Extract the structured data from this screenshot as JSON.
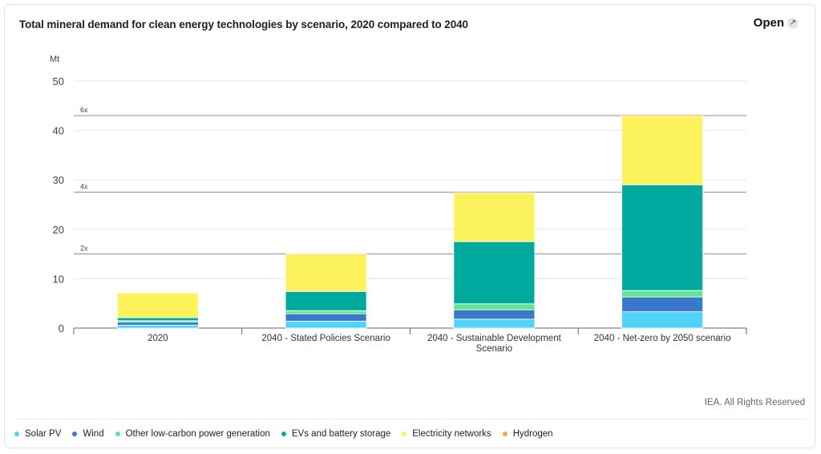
{
  "header": {
    "title": "Total mineral demand for clean energy technologies by scenario, 2020 compared to 2040",
    "open_label": "Open",
    "open_icon": "expand-arrows-icon"
  },
  "footer": {
    "credit": "IEA. All Rights Reserved"
  },
  "chart_data": {
    "type": "bar",
    "stacked": true,
    "title": "Total mineral demand for clean energy technologies by scenario, 2020 compared to 2040",
    "ylabel": "Mt",
    "ylim": [
      0,
      50
    ],
    "yticks": [
      0,
      10,
      20,
      30,
      40,
      50
    ],
    "grid": true,
    "legend_position": "bottom",
    "categories": [
      [
        "2020"
      ],
      [
        "2040 - Stated Policies Scenario"
      ],
      [
        "2040 - Sustainable Development",
        "Scenario"
      ],
      [
        "2040 - Net-zero by 2050 scenario"
      ]
    ],
    "series": [
      {
        "name": "Solar PV",
        "color": "#4fd3f7",
        "values": [
          0.6,
          1.4,
          1.8,
          3.3
        ]
      },
      {
        "name": "Wind",
        "color": "#3a78c9",
        "values": [
          0.6,
          1.5,
          1.9,
          3.0
        ]
      },
      {
        "name": "Other low-carbon power generation",
        "color": "#62e590",
        "values": [
          0.3,
          0.6,
          1.2,
          1.3
        ]
      },
      {
        "name": "EVs and battery storage",
        "color": "#00a99d",
        "values": [
          0.6,
          3.9,
          12.6,
          21.4
        ]
      },
      {
        "name": "Electricity networks",
        "color": "#fcf35c",
        "values": [
          5.0,
          7.6,
          9.9,
          13.9
        ]
      },
      {
        "name": "Hydrogen",
        "color": "#f4a93a",
        "values": [
          0.0,
          0.0,
          0.0,
          0.3
        ]
      }
    ],
    "reference_lines": [
      {
        "label": "2x",
        "value": 15.0
      },
      {
        "label": "4x",
        "value": 27.5
      },
      {
        "label": "6x",
        "value": 43.0
      }
    ]
  }
}
